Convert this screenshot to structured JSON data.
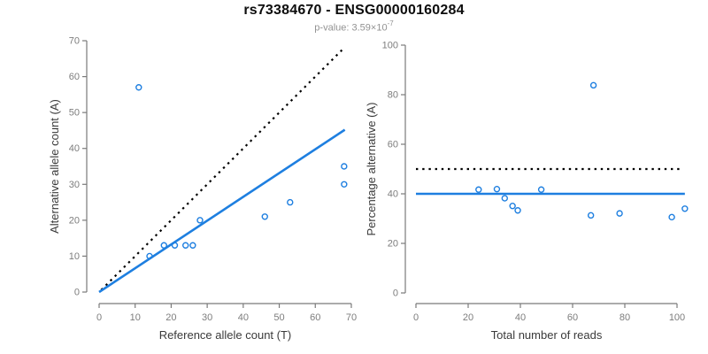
{
  "header": {
    "title": "rs73384670 - ENSG00000160284",
    "pvalue_text": "p-value: 3.59×10",
    "pvalue_exponent": "-7"
  },
  "colors": {
    "accent_blue": "#1e7fe0",
    "line_black": "#000000",
    "axis_gray": "#7a7a7a",
    "tick_label_gray": "#7d7d7d",
    "axis_title_dark": "#3a3a3a",
    "subtitle_gray": "#929292"
  },
  "chart_data": [
    {
      "type": "scatter",
      "name": "allele-count-scatter",
      "xlabel": "Reference allele count (T)",
      "ylabel": "Alternative allele count (A)",
      "xlim": [
        0,
        70
      ],
      "ylim": [
        0,
        70
      ],
      "xticks": [
        0,
        10,
        20,
        30,
        40,
        50,
        60,
        70
      ],
      "yticks": [
        0,
        10,
        20,
        30,
        40,
        50,
        60,
        70
      ],
      "grid": false,
      "points": [
        [
          11,
          57
        ],
        [
          14,
          10
        ],
        [
          18,
          13
        ],
        [
          21,
          13
        ],
        [
          24,
          13
        ],
        [
          26,
          13
        ],
        [
          28,
          20
        ],
        [
          46,
          21
        ],
        [
          53,
          25
        ],
        [
          68,
          30
        ],
        [
          68,
          35
        ]
      ],
      "lines": [
        {
          "name": "identity-line",
          "style": "dotted",
          "color": "#000000",
          "width": 2.2,
          "x1": 0.6,
          "y1": 0.6,
          "x2": 67.4,
          "y2": 67.4
        },
        {
          "name": "fit-line",
          "style": "solid",
          "color": "#1e7fe0",
          "width": 2.6,
          "x1": 0,
          "y1": 0,
          "x2": 68.2,
          "y2": 45.2
        }
      ]
    },
    {
      "type": "scatter",
      "name": "percentage-scatter",
      "xlabel": "Total number of reads",
      "ylabel": "Percentage alternative (A)",
      "xlim": [
        0,
        103
      ],
      "ylim": [
        0,
        100
      ],
      "xticks": [
        0,
        20,
        40,
        60,
        80,
        100
      ],
      "yticks": [
        0,
        20,
        40,
        60,
        80,
        100
      ],
      "grid": false,
      "points": [
        [
          24,
          41.7
        ],
        [
          31,
          41.9
        ],
        [
          34,
          38.2
        ],
        [
          37,
          35.1
        ],
        [
          39,
          33.3
        ],
        [
          48,
          41.7
        ],
        [
          67,
          31.3
        ],
        [
          68,
          83.8
        ],
        [
          78,
          32.1
        ],
        [
          98,
          30.6
        ],
        [
          103,
          34.0
        ]
      ],
      "lines": [
        {
          "name": "expected-percentage-line",
          "style": "dotted",
          "color": "#000000",
          "width": 2.2,
          "x1": 0,
          "y1": 50,
          "x2": 101,
          "y2": 50
        },
        {
          "name": "observed-percentage-line",
          "style": "solid",
          "color": "#1e7fe0",
          "width": 2.6,
          "x1": 0,
          "y1": 40,
          "x2": 103,
          "y2": 40
        }
      ]
    }
  ]
}
